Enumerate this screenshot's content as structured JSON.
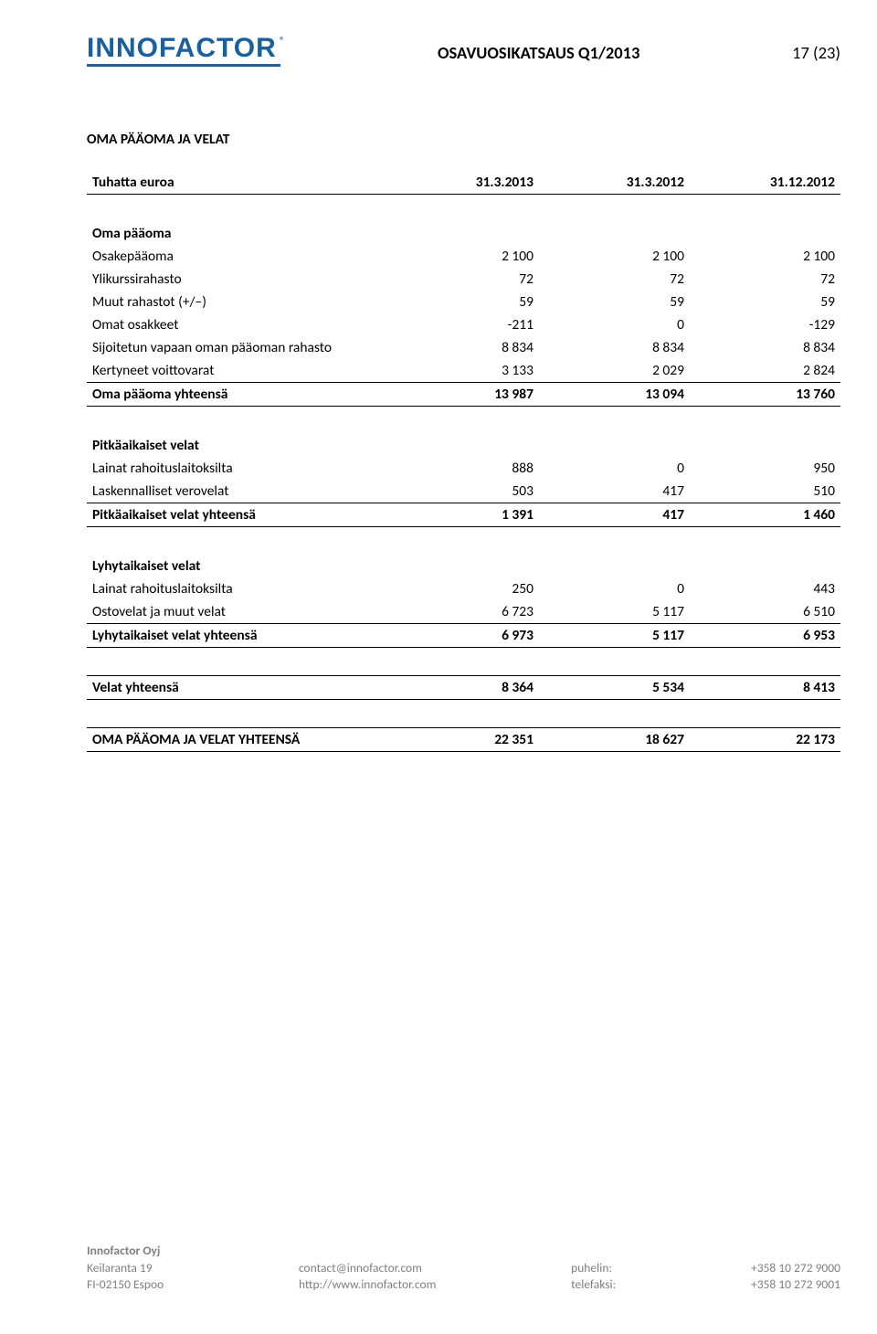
{
  "header": {
    "logo": "INNOFACTOR",
    "logo_reg": "®",
    "doc_title": "OSAVUOSIKATSAUS Q1/2013",
    "page_num": "17 (23)"
  },
  "section_title": "OMA PÄÄOMA JA VELAT",
  "col_headers": {
    "c0": "Tuhatta euroa",
    "c1": "31.3.2013",
    "c2": "31.3.2012",
    "c3": "31.12.2012"
  },
  "equity": {
    "heading": "Oma pääoma",
    "rows": {
      "r0": {
        "label": "Osakepääoma",
        "v1": "2 100",
        "v2": "2 100",
        "v3": "2 100"
      },
      "r1": {
        "label": "Ylikurssirahasto",
        "v1": "72",
        "v2": "72",
        "v3": "72"
      },
      "r2": {
        "label": "Muut rahastot (+/–)",
        "v1": "59",
        "v2": "59",
        "v3": "59"
      },
      "r3": {
        "label": "Omat osakkeet",
        "v1": "-211",
        "v2": "0",
        "v3": "-129"
      },
      "r4": {
        "label": "Sijoitetun vapaan oman pääoman rahasto",
        "v1": "8 834",
        "v2": "8 834",
        "v3": "8 834"
      },
      "r5": {
        "label": "Kertyneet voittovarat",
        "v1": "3 133",
        "v2": "2 029",
        "v3": "2 824"
      }
    },
    "total": {
      "label": "Oma pääoma yhteensä",
      "v1": "13 987",
      "v2": "13 094",
      "v3": "13 760"
    }
  },
  "long_liab": {
    "heading": "Pitkäaikaiset velat",
    "rows": {
      "r0": {
        "label": "Lainat rahoituslaitoksilta",
        "v1": "888",
        "v2": "0",
        "v3": "950"
      },
      "r1": {
        "label": "Laskennalliset verovelat",
        "v1": "503",
        "v2": "417",
        "v3": "510"
      }
    },
    "total": {
      "label": "Pitkäaikaiset velat yhteensä",
      "v1": "1 391",
      "v2": "417",
      "v3": "1 460"
    }
  },
  "short_liab": {
    "heading": "Lyhytaikaiset velat",
    "rows": {
      "r0": {
        "label": "Lainat rahoituslaitoksilta",
        "v1": "250",
        "v2": "0",
        "v3": "443"
      },
      "r1": {
        "label": "Ostovelat ja muut velat",
        "v1": "6 723",
        "v2": "5 117",
        "v3": "6 510"
      }
    },
    "total": {
      "label": "Lyhytaikaiset velat yhteensä",
      "v1": "6 973",
      "v2": "5 117",
      "v3": "6 953"
    }
  },
  "liab_total": {
    "label": "Velat yhteensä",
    "v1": "8 364",
    "v2": "5 534",
    "v3": "8 413"
  },
  "grand_total": {
    "label": "OMA PÄÄOMA JA VELAT YHTEENSÄ",
    "v1": "22 351",
    "v2": "18 627",
    "v3": "22 173"
  },
  "footer": {
    "company": "Innofactor Oyj",
    "addr1": "Keilaranta 19",
    "addr2": "FI-02150 Espoo",
    "email": "contact@innofactor.com",
    "web": "http://www.innofactor.com",
    "tel_label": "puhelin:",
    "fax_label": "telefaksi:",
    "tel": "+358 10 272 9000",
    "fax": "+358 10 272 9001"
  }
}
